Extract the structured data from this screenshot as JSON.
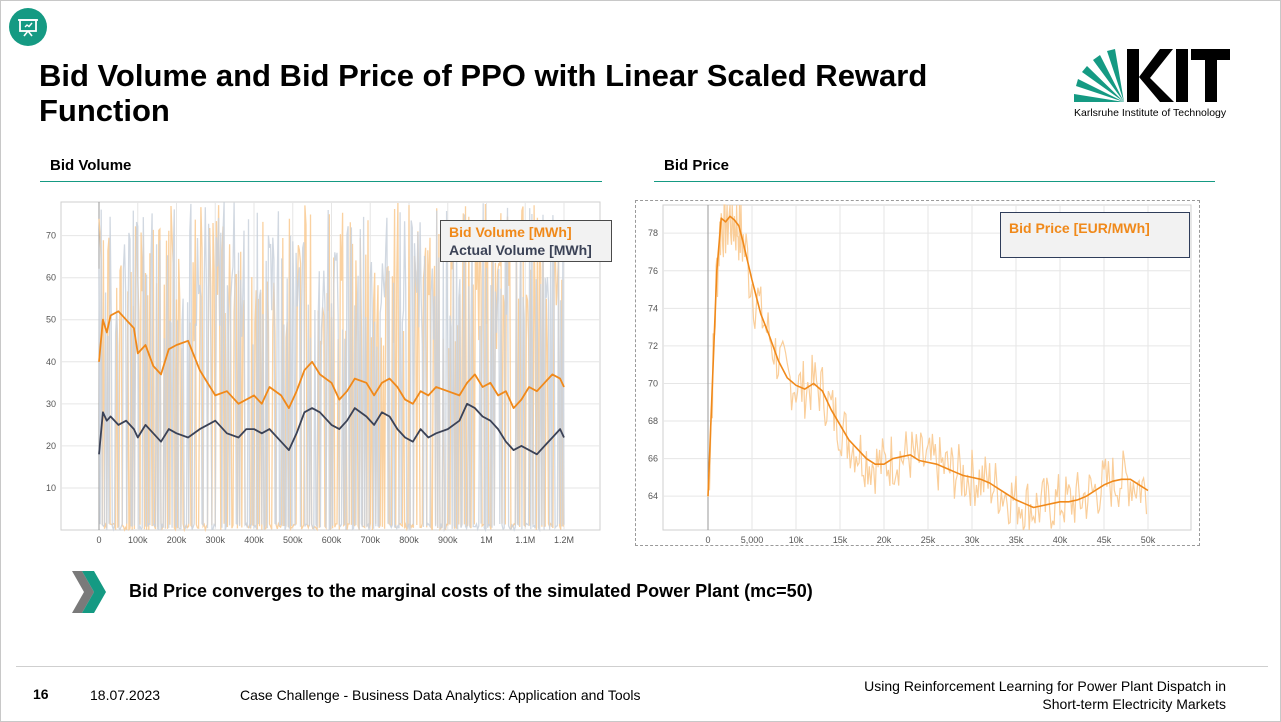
{
  "header": {
    "title": "Bid Volume and Bid Price of PPO with Linear Scaled Reward Function",
    "logo_text": "KIT",
    "logo_subtitle": "Karlsruhe Institute of Technology",
    "icon": "presentation-icon"
  },
  "sections": {
    "left_label": "Bid Volume",
    "right_label": "Bid Price"
  },
  "bullet": {
    "icon": "chevron-double-icon",
    "text": "Bid Price converges to the marginal costs of the simulated Power Plant (mc=50)"
  },
  "footer": {
    "page": "16",
    "date": "18.07.2023",
    "course": "Case Challenge - Business Data Analytics: Application and Tools",
    "talk_line1": "Using Reinforcement Learning for Power Plant Dispatch in",
    "talk_line2": "Short-term Electricity Markets"
  },
  "colors": {
    "accent": "#159a83",
    "bid": "#f0891a",
    "bid_raw": "#f9c98f",
    "actual": "#3b4256",
    "actual_raw": "#c9d1dc"
  },
  "chart_data": [
    {
      "type": "line",
      "title": "Bid Volume",
      "x_ticks": [
        "0",
        "100k",
        "200k",
        "300k",
        "400k",
        "500k",
        "600k",
        "700k",
        "800k",
        "900k",
        "1M",
        "1.1M",
        "1.2M"
      ],
      "y_ticks": [
        10,
        20,
        30,
        40,
        50,
        60,
        70
      ],
      "xlim": [
        0,
        1200000
      ],
      "ylim": [
        0,
        78
      ],
      "legend": {
        "position": "top-right",
        "entries": [
          "Bid Volume [MWh]",
          "Actual Volume [MWh]"
        ]
      },
      "series": [
        {
          "name": "Bid Volume [MWh]",
          "x": [
            0,
            10000,
            20000,
            30000,
            50000,
            70000,
            90000,
            100000,
            120000,
            140000,
            160000,
            180000,
            200000,
            230000,
            260000,
            280000,
            300000,
            330000,
            360000,
            380000,
            400000,
            420000,
            440000,
            470000,
            490000,
            510000,
            530000,
            550000,
            570000,
            600000,
            620000,
            640000,
            660000,
            690000,
            710000,
            730000,
            750000,
            770000,
            790000,
            810000,
            830000,
            850000,
            870000,
            900000,
            930000,
            950000,
            970000,
            990000,
            1010000,
            1030000,
            1050000,
            1070000,
            1090000,
            1110000,
            1130000,
            1150000,
            1170000,
            1190000,
            1200000
          ],
          "y": [
            40,
            50,
            47,
            51,
            52,
            50,
            48,
            42,
            44,
            39,
            37,
            43,
            44,
            45,
            38,
            35,
            32,
            33,
            30,
            31,
            32,
            30,
            34,
            32,
            29,
            33,
            38,
            40,
            37,
            35,
            31,
            33,
            36,
            35,
            32,
            35,
            36,
            34,
            31,
            30,
            33,
            32,
            34,
            33,
            32,
            35,
            37,
            34,
            35,
            32,
            33,
            29,
            31,
            34,
            33,
            35,
            37,
            36,
            34
          ]
        },
        {
          "name": "Actual Volume [MWh]",
          "x": [
            0,
            10000,
            20000,
            30000,
            50000,
            70000,
            90000,
            100000,
            120000,
            140000,
            160000,
            180000,
            200000,
            230000,
            260000,
            280000,
            300000,
            330000,
            360000,
            380000,
            400000,
            420000,
            440000,
            470000,
            490000,
            510000,
            530000,
            550000,
            570000,
            600000,
            620000,
            640000,
            660000,
            690000,
            710000,
            730000,
            750000,
            770000,
            790000,
            810000,
            830000,
            850000,
            870000,
            900000,
            930000,
            950000,
            970000,
            990000,
            1010000,
            1030000,
            1050000,
            1070000,
            1090000,
            1110000,
            1130000,
            1150000,
            1170000,
            1190000,
            1200000
          ],
          "y": [
            18,
            28,
            26,
            27,
            25,
            26,
            24,
            22,
            25,
            23,
            21,
            24,
            23,
            22,
            24,
            25,
            26,
            23,
            22,
            24,
            24,
            23,
            24,
            21,
            19,
            23,
            28,
            29,
            28,
            25,
            24,
            26,
            29,
            27,
            25,
            28,
            27,
            24,
            22,
            21,
            24,
            22,
            23,
            24,
            26,
            30,
            29,
            27,
            26,
            24,
            21,
            19,
            20,
            19,
            18,
            20,
            22,
            24,
            22
          ]
        }
      ]
    },
    {
      "type": "line",
      "title": "Bid Price",
      "x_ticks": [
        "0",
        "5,000",
        "10k",
        "15k",
        "20k",
        "25k",
        "30k",
        "35k",
        "40k",
        "45k",
        "50k"
      ],
      "y_ticks": [
        64,
        66,
        68,
        70,
        72,
        74,
        76,
        78
      ],
      "xlim": [
        0,
        50000
      ],
      "ylim": [
        62.2,
        79.5
      ],
      "legend": {
        "position": "top-right",
        "entries": [
          "Bid Price [EUR/MWh]"
        ]
      },
      "series": [
        {
          "name": "Bid Price [EUR/MWh]",
          "x": [
            0,
            500,
            1000,
            1500,
            2000,
            2500,
            3000,
            3500,
            4000,
            5000,
            6000,
            7000,
            8000,
            9000,
            10000,
            11000,
            12000,
            13000,
            14000,
            15000,
            16000,
            17000,
            18000,
            19000,
            20000,
            21000,
            22000,
            23000,
            24000,
            25000,
            26000,
            27000,
            28000,
            29000,
            30000,
            31000,
            32000,
            33000,
            34000,
            35000,
            36000,
            37000,
            38000,
            39000,
            40000,
            41000,
            42000,
            43000,
            44000,
            45000,
            46000,
            47000,
            48000,
            49000,
            50000
          ],
          "y": [
            64,
            70,
            76,
            78.8,
            78.6,
            78.9,
            78.7,
            78.4,
            77.5,
            75.5,
            73.7,
            72.5,
            71.2,
            70.3,
            69.9,
            69.7,
            70,
            69.6,
            68.6,
            67.8,
            67,
            66.5,
            66,
            65.7,
            65.7,
            66,
            66.1,
            66.2,
            65.9,
            65.8,
            65.7,
            65.5,
            65.3,
            65.1,
            65,
            64.9,
            64.7,
            64.4,
            64.1,
            63.8,
            63.6,
            63.4,
            63.5,
            63.6,
            63.7,
            63.7,
            63.8,
            64,
            64.3,
            64.6,
            64.8,
            64.9,
            64.9,
            64.6,
            64.3
          ]
        }
      ]
    }
  ]
}
